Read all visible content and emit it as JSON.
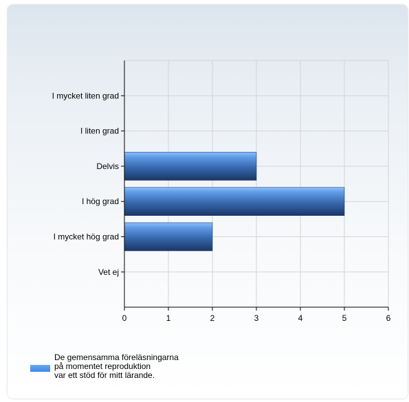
{
  "chart_data": {
    "type": "bar",
    "orientation": "horizontal",
    "categories": [
      "I mycket liten grad",
      "I liten grad",
      "Delvis",
      "I hög grad",
      "I mycket hög grad",
      "Vet ej"
    ],
    "series": [
      {
        "name": "De gemensamma föreläsningarna på momentet reproduktion var ett stöd för mitt lärande.",
        "values": [
          0,
          0,
          3,
          5,
          2,
          0
        ]
      }
    ],
    "xlim": [
      0,
      6
    ],
    "xticks": [
      "0",
      "1",
      "2",
      "3",
      "4",
      "5",
      "6"
    ],
    "grid": true,
    "legend_position": "bottom-left",
    "colors": {
      "bar_top": "#6aa8f5",
      "bar_mid": "#3a78c8",
      "bar_bottom": "#1c3f76",
      "grid": "#d4d4d4"
    }
  },
  "legend": {
    "label": "De gemensamma föreläsningarna\npå momentet reproduktion\nvar ett stöd för mitt lärande."
  }
}
